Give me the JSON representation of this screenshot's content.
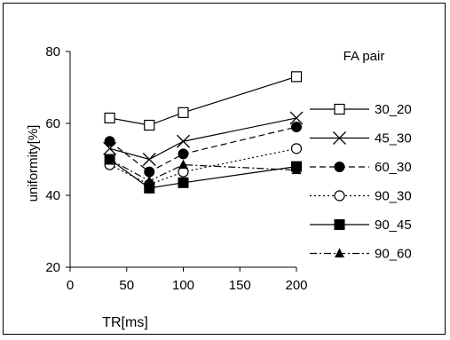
{
  "chart_data": {
    "type": "line",
    "title": "",
    "xlabel": "TR[ms]",
    "ylabel": "uniformity[%]",
    "xlim": [
      0,
      200
    ],
    "ylim": [
      20,
      80
    ],
    "xticks": [
      0,
      50,
      100,
      150,
      200
    ],
    "yticks": [
      20,
      40,
      60,
      80
    ],
    "grid": false,
    "legend_title": "FA pair",
    "legend_position": "right",
    "x": [
      35,
      70,
      100,
      200
    ],
    "series": [
      {
        "name": "30_20",
        "values": [
          61.5,
          59.5,
          63,
          73
        ],
        "marker": "square-open",
        "line": "solid",
        "color": "#000000"
      },
      {
        "name": "45_30",
        "values": [
          53,
          50,
          55,
          61.5
        ],
        "marker": "x",
        "line": "solid",
        "color": "#000000"
      },
      {
        "name": "60_30",
        "values": [
          55,
          46.5,
          51.5,
          59
        ],
        "marker": "circle-filled",
        "line": "dashed",
        "color": "#000000"
      },
      {
        "name": "90_30",
        "values": [
          48.5,
          43,
          46.5,
          53
        ],
        "marker": "circle-open",
        "line": "dotted",
        "color": "#000000"
      },
      {
        "name": "90_45",
        "values": [
          50,
          42,
          43.5,
          48
        ],
        "marker": "square-filled",
        "line": "solid",
        "color": "#000000"
      },
      {
        "name": "90_60",
        "values": [
          50,
          44,
          48.5,
          47
        ],
        "marker": "triangle-filled",
        "line": "dashdot",
        "color": "#000000"
      }
    ]
  }
}
